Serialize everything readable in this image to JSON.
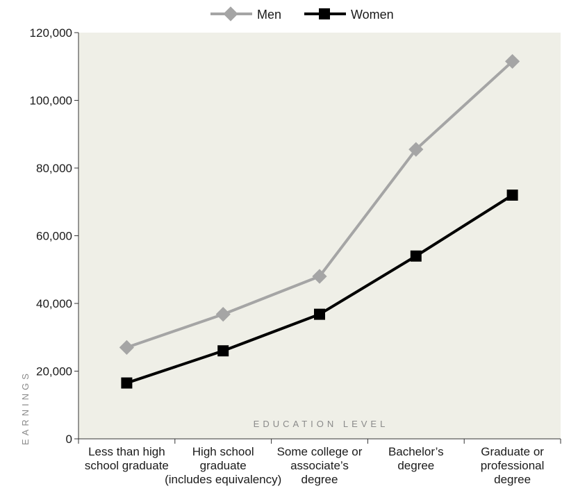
{
  "chart_data": {
    "type": "line",
    "xlabel": "EDUCATION LEVEL",
    "ylabel": "EARNINGS",
    "ylim": [
      0,
      120000
    ],
    "yticks": [
      0,
      20000,
      40000,
      60000,
      80000,
      100000,
      120000
    ],
    "ytick_labels": [
      "0",
      "20,000",
      "40,000",
      "60,000",
      "80,000",
      "100,000",
      "120,000"
    ],
    "categories": [
      [
        "Less than high",
        "school graduate"
      ],
      [
        "High school",
        "graduate",
        "(includes equivalency)"
      ],
      [
        "Some college or",
        "associate’s",
        "degree"
      ],
      [
        "Bachelor’s",
        "degree"
      ],
      [
        "Graduate or",
        "professional",
        "degree"
      ]
    ],
    "series": [
      {
        "name": "Men",
        "marker": "diamond",
        "color": "#a5a5a5",
        "values": [
          27000,
          36800,
          48000,
          85500,
          111500
        ]
      },
      {
        "name": "Women",
        "marker": "square",
        "color": "#000000",
        "values": [
          16500,
          26000,
          36800,
          54000,
          72000
        ]
      }
    ],
    "legend": "top-center",
    "plot_background": "#efefe7"
  }
}
